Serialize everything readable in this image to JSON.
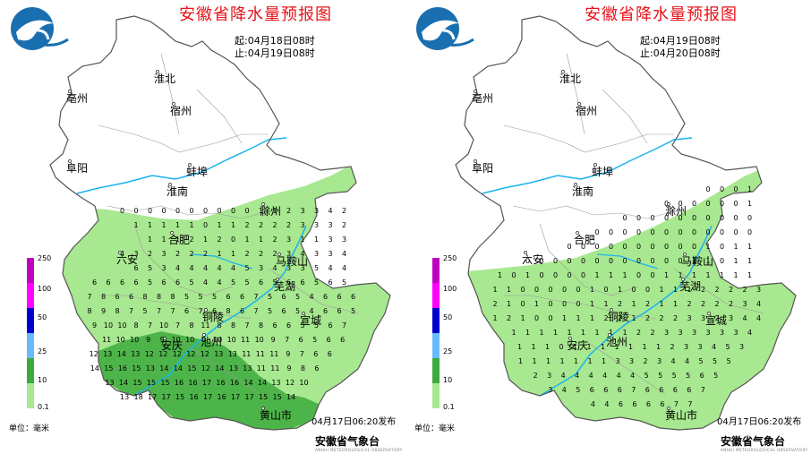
{
  "panels": [
    {
      "title": "安徽省降水量预报图",
      "start_label": "起:04月18日08时",
      "end_label": "止:04月19日08时",
      "issued": "04月17日06:20发布",
      "unit": "单位：毫米",
      "organization": "安徽省气象台",
      "organization_sub": "ANHUI METEOROLOGICAL OBSERVATORY"
    },
    {
      "title": "安徽省降水量预报图",
      "start_label": "起:04月19日08时",
      "end_label": "止:04月20日08时",
      "issued": "04月17日06:20发布",
      "unit": "单位：毫米",
      "organization": "安徽省气象台",
      "organization_sub": "ANHUI METEOROLOGICAL OBSERVATORY"
    }
  ],
  "cities": [
    {
      "name": "淮北",
      "x": 182,
      "y": 92
    },
    {
      "name": "亳州",
      "x": 84,
      "y": 114
    },
    {
      "name": "宿州",
      "x": 200,
      "y": 128
    },
    {
      "name": "阜阳",
      "x": 84,
      "y": 192
    },
    {
      "name": "蚌埠",
      "x": 218,
      "y": 196
    },
    {
      "name": "淮南",
      "x": 196,
      "y": 218
    },
    {
      "name": "滁州",
      "x": 300,
      "y": 240
    },
    {
      "name": "合肥",
      "x": 198,
      "y": 272
    },
    {
      "name": "六安",
      "x": 140,
      "y": 294
    },
    {
      "name": "马鞍山",
      "x": 318,
      "y": 296
    },
    {
      "name": "芜湖",
      "x": 316,
      "y": 324
    },
    {
      "name": "铜陵",
      "x": 236,
      "y": 358
    },
    {
      "name": "宣城",
      "x": 345,
      "y": 362
    },
    {
      "name": "安庆",
      "x": 190,
      "y": 390
    },
    {
      "name": "池州",
      "x": 234,
      "y": 386
    },
    {
      "name": "黄山市",
      "x": 300,
      "y": 468
    }
  ],
  "legend": {
    "labels": [
      "250",
      "100",
      "50",
      "25",
      "10",
      "0.1"
    ],
    "colors": [
      "#c000c0",
      "#ff00ff",
      "#0000cc",
      "#66bbff",
      "#3daa3d",
      "#a8e890"
    ]
  },
  "precip_values": [
    {
      "rows": [
        {
          "y": 238,
          "vals": [
            "0",
            "0",
            "0",
            "0",
            "0",
            "0",
            "0",
            "0",
            "0",
            "0",
            "1",
            "1",
            "2",
            "3",
            "3",
            "4",
            "2"
          ]
        },
        {
          "y": 254,
          "vals": [
            "1",
            "1",
            "1",
            "1",
            "1",
            "0",
            "1",
            "1",
            "2",
            "2",
            "2",
            "2",
            "3",
            "3",
            "3",
            "2"
          ]
        },
        {
          "y": 270,
          "vals": [
            "1",
            "1",
            "1",
            "2",
            "1",
            "2",
            "0",
            "1",
            "1",
            "2",
            "3",
            "1",
            "1",
            "3",
            "3"
          ]
        },
        {
          "y": 286,
          "vals": [
            "4",
            "3",
            "2",
            "3",
            "2",
            "2",
            "2",
            "1",
            "1",
            "2",
            "2",
            "2",
            "3",
            "4",
            "3",
            "3",
            "4"
          ]
        },
        {
          "y": 302,
          "vals": [
            "6",
            "5",
            "3",
            "4",
            "4",
            "4",
            "4",
            "4",
            "5",
            "3",
            "4",
            "3",
            "3",
            "5",
            "4",
            "4"
          ]
        },
        {
          "y": 318,
          "vals": [
            "6",
            "6",
            "6",
            "6",
            "5",
            "6",
            "6",
            "5",
            "4",
            "4",
            "5",
            "5",
            "6",
            "5",
            "6",
            "6",
            "5",
            "6",
            "5"
          ]
        },
        {
          "y": 334,
          "vals": [
            "7",
            "8",
            "6",
            "6",
            "8",
            "8",
            "8",
            "5",
            "5",
            "5",
            "6",
            "6",
            "7",
            "5",
            "6",
            "5",
            "4",
            "6",
            "6",
            "6"
          ]
        },
        {
          "y": 350,
          "vals": [
            "8",
            "9",
            "8",
            "7",
            "5",
            "7",
            "7",
            "6",
            "7",
            "6",
            "8",
            "6",
            "7",
            "5",
            "6",
            "5",
            "4",
            "6",
            "6",
            "5"
          ]
        },
        {
          "y": 366,
          "vals": [
            "9",
            "10",
            "10",
            "8",
            "7",
            "10",
            "7",
            "8",
            "11",
            "8",
            "8",
            "7",
            "8",
            "6",
            "6",
            "5",
            "5",
            "6",
            "7"
          ]
        },
        {
          "y": 382,
          "vals": [
            "11",
            "10",
            "10",
            "9",
            "9",
            "10",
            "10",
            "9",
            "10",
            "10",
            "11",
            "10",
            "9",
            "7",
            "6",
            "5",
            "6",
            "6"
          ]
        },
        {
          "y": 398,
          "vals": [
            "12",
            "13",
            "14",
            "13",
            "12",
            "12",
            "12",
            "12",
            "12",
            "13",
            "13",
            "11",
            "11",
            "11",
            "9",
            "7",
            "6",
            "6"
          ]
        },
        {
          "y": 414,
          "vals": [
            "14",
            "15",
            "16",
            "15",
            "13",
            "14",
            "14",
            "15",
            "12",
            "14",
            "13",
            "13",
            "11",
            "11",
            "9",
            "8",
            "6"
          ]
        },
        {
          "y": 430,
          "vals": [
            "13",
            "14",
            "15",
            "15",
            "15",
            "16",
            "16",
            "17",
            "16",
            "16",
            "14",
            "14",
            "13",
            "12",
            "10"
          ]
        },
        {
          "y": 446,
          "vals": [
            "13",
            "18",
            "17",
            "17",
            "15",
            "16",
            "17",
            "16",
            "17",
            "17",
            "15",
            "15",
            "14"
          ]
        }
      ]
    },
    {
      "rows": [
        {
          "y": 214,
          "vals": [
            "0",
            "0",
            "0",
            "1"
          ]
        },
        {
          "y": 230,
          "vals": [
            "0",
            "0",
            "0",
            "0",
            "0",
            "0",
            "1"
          ]
        },
        {
          "y": 246,
          "vals": [
            "0",
            "0",
            "0",
            "0",
            "0",
            "0",
            "0",
            "0",
            "0",
            "0"
          ]
        },
        {
          "y": 262,
          "vals": [
            "0",
            "0",
            "0",
            "0",
            "0",
            "0",
            "0",
            "0",
            "0",
            "0",
            "0",
            "0"
          ]
        },
        {
          "y": 278,
          "vals": [
            "0",
            "0",
            "0",
            "0",
            "0",
            "0",
            "0",
            "0",
            "0",
            "0",
            "1",
            "0",
            "1",
            "1"
          ]
        },
        {
          "y": 294,
          "vals": [
            "0",
            "0",
            "0",
            "0",
            "0",
            "0",
            "0",
            "0",
            "0",
            "0",
            "0",
            "0",
            "1",
            "1",
            "0",
            "1",
            "1"
          ]
        },
        {
          "y": 310,
          "vals": [
            "1",
            "0",
            "1",
            "0",
            "0",
            "0",
            "0",
            "1",
            "1",
            "1",
            "0",
            "0",
            "1",
            "1",
            "1",
            "1",
            "1",
            "1",
            "1"
          ]
        },
        {
          "y": 326,
          "vals": [
            "1",
            "1",
            "0",
            "0",
            "0",
            "0",
            "0",
            "1",
            "0",
            "1",
            "0",
            "0",
            "1",
            "1",
            "1",
            "2",
            "2",
            "2",
            "2",
            "3"
          ]
        },
        {
          "y": 342,
          "vals": [
            "2",
            "1",
            "0",
            "1",
            "0",
            "0",
            "0",
            "1",
            "1",
            "2",
            "1",
            "2",
            "1",
            "1",
            "2",
            "2",
            "2",
            "2",
            "3",
            "4"
          ]
        },
        {
          "y": 358,
          "vals": [
            "1",
            "2",
            "1",
            "0",
            "0",
            "1",
            "1",
            "1",
            "2",
            "2",
            "1",
            "2",
            "2",
            "2",
            "3",
            "3",
            "2",
            "3",
            "4",
            "4"
          ]
        },
        {
          "y": 374,
          "vals": [
            "1",
            "1",
            "1",
            "1",
            "1",
            "1",
            "1",
            "1",
            "1",
            "2",
            "2",
            "3",
            "3",
            "3",
            "3",
            "3",
            "3",
            "4"
          ]
        },
        {
          "y": 390,
          "vals": [
            "1",
            "1",
            "1",
            "0",
            "1",
            "1",
            "1",
            "1",
            "1",
            "1",
            "1",
            "2",
            "3",
            "3",
            "4",
            "5",
            "3"
          ]
        },
        {
          "y": 406,
          "vals": [
            "1",
            "1",
            "1",
            "1",
            "1",
            "1",
            "1",
            "3",
            "3",
            "2",
            "3",
            "4",
            "4",
            "5",
            "5",
            "5"
          ]
        },
        {
          "y": 422,
          "vals": [
            "2",
            "3",
            "4",
            "4",
            "4",
            "4",
            "4",
            "4",
            "5",
            "5",
            "5",
            "5",
            "6",
            "5"
          ]
        },
        {
          "y": 438,
          "vals": [
            "3",
            "4",
            "5",
            "6",
            "6",
            "6",
            "7",
            "6",
            "6",
            "6",
            "6",
            "7"
          ]
        },
        {
          "y": 454,
          "vals": [
            "4",
            "4",
            "6",
            "6",
            "6",
            "6",
            "7",
            "7"
          ]
        }
      ]
    }
  ]
}
